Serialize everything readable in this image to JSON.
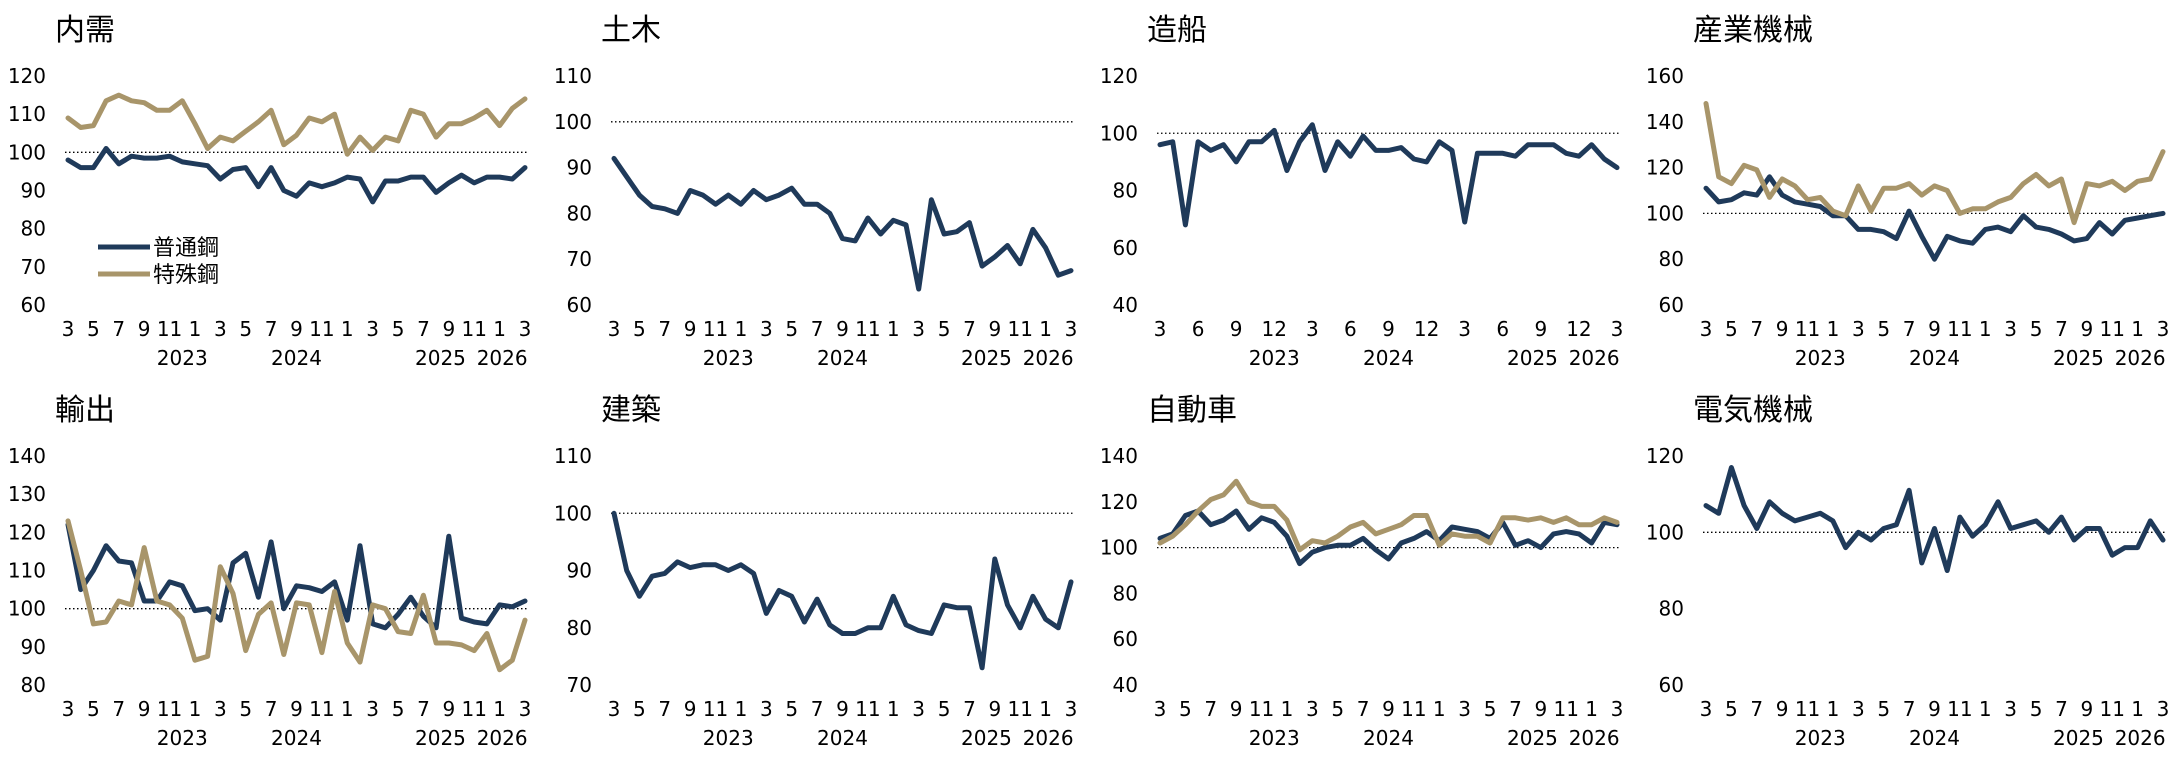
{
  "colors": {
    "series1": "#1f3a5a",
    "series2": "#a8956a",
    "reference_line": "#000000"
  },
  "chart_data": [
    {
      "type": "line",
      "title": "内需",
      "x_month_labels": [
        "3",
        "5",
        "7",
        "9",
        "11",
        "1",
        "3",
        "5",
        "7",
        "9",
        "11",
        "1",
        "3",
        "5",
        "7",
        "9",
        "11",
        "1",
        "3"
      ],
      "x_year_labels": [
        "2023",
        "2024",
        "2025",
        "2026"
      ],
      "ylim": [
        60,
        120
      ],
      "yticks": [
        60,
        70,
        80,
        90,
        100,
        110,
        120
      ],
      "reference_line": 100,
      "legend": {
        "position": "lower-left",
        "entries": [
          "普通鋼",
          "特殊鋼"
        ]
      },
      "series": [
        {
          "name": "普通鋼",
          "values": [
            98,
            96,
            96,
            101,
            97,
            99,
            98.5,
            98.5,
            99,
            97.5,
            97,
            96.5,
            93,
            95.5,
            96,
            91,
            96,
            90,
            88.5,
            92,
            91,
            92,
            93.5,
            93,
            87,
            92.5,
            92.5,
            93.5,
            93.5,
            89.5,
            92,
            94,
            92,
            93.5,
            93.5,
            93,
            96
          ]
        },
        {
          "name": "特殊鋼",
          "values": [
            109,
            106.5,
            107,
            113.5,
            115,
            113.5,
            113,
            111,
            111,
            113.5,
            107.5,
            101,
            104,
            103,
            105.5,
            108,
            111,
            102,
            104.5,
            109,
            108,
            110,
            99.5,
            104,
            100.5,
            104,
            103,
            111,
            110,
            104,
            107.5,
            107.5,
            109,
            111,
            107,
            111.5,
            114
          ]
        }
      ]
    },
    {
      "type": "line",
      "title": "土木",
      "x_month_labels": [
        "3",
        "5",
        "7",
        "9",
        "11",
        "1",
        "3",
        "5",
        "7",
        "9",
        "11",
        "1",
        "3",
        "5",
        "7",
        "9",
        "11",
        "1",
        "3"
      ],
      "x_year_labels": [
        "2023",
        "2024",
        "2025",
        "2026"
      ],
      "ylim": [
        60,
        110
      ],
      "yticks": [
        60,
        70,
        80,
        90,
        100,
        110
      ],
      "reference_line": 100,
      "series": [
        {
          "name": "",
          "values": [
            92,
            88,
            84,
            81.5,
            81,
            80,
            85,
            84,
            82,
            84,
            82,
            85,
            83,
            84,
            85.5,
            82,
            82,
            80,
            74.5,
            74,
            79,
            75.5,
            78.5,
            77.5,
            63.5,
            83,
            75.5,
            76,
            78,
            68.5,
            70.5,
            73,
            69,
            76.5,
            72.5,
            66.5,
            67.5
          ]
        }
      ]
    },
    {
      "type": "line",
      "title": "造船",
      "x_month_labels": [
        "3",
        "6",
        "9",
        "12",
        "3",
        "6",
        "9",
        "12",
        "3",
        "6",
        "9",
        "12",
        "3"
      ],
      "x_year_labels": [
        "2023",
        "2024",
        "2025",
        "2026"
      ],
      "ylim": [
        40,
        120
      ],
      "yticks": [
        40,
        60,
        80,
        100,
        120
      ],
      "reference_line": 100,
      "series": [
        {
          "name": "",
          "values": [
            96,
            97,
            68,
            97,
            94,
            96,
            90,
            97,
            97,
            101,
            87,
            97,
            103,
            87,
            97,
            92,
            99,
            94,
            94,
            95,
            91,
            90,
            97,
            94,
            69,
            93,
            93,
            93,
            92,
            96,
            96,
            96,
            93,
            92,
            96,
            91,
            88
          ]
        }
      ]
    },
    {
      "type": "line",
      "title": "産業機械",
      "x_month_labels": [
        "3",
        "5",
        "7",
        "9",
        "11",
        "1",
        "3",
        "5",
        "7",
        "9",
        "11",
        "1",
        "3",
        "5",
        "7",
        "9",
        "11",
        "1",
        "3"
      ],
      "x_year_labels": [
        "2023",
        "2024",
        "2025",
        "2026"
      ],
      "ylim": [
        60,
        160
      ],
      "yticks": [
        60,
        80,
        100,
        120,
        140,
        160
      ],
      "reference_line": 100,
      "series": [
        {
          "name": "普通鋼",
          "values": [
            111,
            105,
            106,
            109,
            108,
            116,
            108,
            105,
            104,
            103,
            99,
            99,
            93,
            93,
            92,
            89,
            101,
            90,
            80,
            90,
            88,
            87,
            93,
            94,
            92,
            99,
            94,
            93,
            91,
            88,
            89,
            96,
            91,
            97,
            98,
            99,
            100
          ]
        },
        {
          "name": "特殊鋼",
          "values": [
            148,
            116,
            113,
            121,
            119,
            107,
            115,
            112,
            106,
            107,
            101,
            99,
            112,
            101,
            111,
            111,
            113,
            108,
            112,
            110,
            100,
            102,
            102,
            105,
            107,
            113,
            117,
            112,
            115,
            96,
            113,
            112,
            114,
            110,
            114,
            115,
            127
          ]
        }
      ]
    },
    {
      "type": "line",
      "title": "輸出",
      "x_month_labels": [
        "3",
        "5",
        "7",
        "9",
        "11",
        "1",
        "3",
        "5",
        "7",
        "9",
        "11",
        "1",
        "3",
        "5",
        "7",
        "9",
        "11",
        "1",
        "3"
      ],
      "x_year_labels": [
        "2023",
        "2024",
        "2025",
        "2026"
      ],
      "ylim": [
        80,
        140
      ],
      "yticks": [
        80,
        90,
        100,
        110,
        120,
        130,
        140
      ],
      "reference_line": 100,
      "series": [
        {
          "name": "普通鋼",
          "values": [
            122,
            105,
            110,
            116.5,
            112.5,
            112,
            102,
            102,
            107,
            106,
            99.5,
            100,
            97,
            112,
            114.5,
            103,
            117.5,
            100,
            106,
            105.5,
            104.5,
            107,
            97,
            116.5,
            96,
            95,
            98.5,
            103,
            98,
            95,
            119,
            97.5,
            96.5,
            96,
            101,
            100.5,
            102
          ]
        },
        {
          "name": "特殊鋼",
          "values": [
            123,
            110,
            96,
            96.5,
            102,
            101,
            116,
            102,
            101,
            97.5,
            86.5,
            87.5,
            111,
            104,
            89,
            98.5,
            101.5,
            88,
            101.5,
            101,
            88.5,
            104.5,
            91,
            86,
            101,
            100,
            94,
            93.5,
            103.5,
            91,
            91,
            90.5,
            89,
            93.5,
            84,
            86.5,
            97
          ]
        }
      ]
    },
    {
      "type": "line",
      "title": "建築",
      "x_month_labels": [
        "3",
        "5",
        "7",
        "9",
        "11",
        "1",
        "3",
        "5",
        "7",
        "9",
        "11",
        "1",
        "3",
        "5",
        "7",
        "9",
        "11",
        "1",
        "3"
      ],
      "x_year_labels": [
        "2023",
        "2024",
        "2025",
        "2026"
      ],
      "ylim": [
        70,
        110
      ],
      "yticks": [
        70,
        80,
        90,
        100,
        110
      ],
      "reference_line": 100,
      "series": [
        {
          "name": "",
          "values": [
            100,
            90,
            85.5,
            89,
            89.5,
            91.5,
            90.5,
            91,
            91,
            90,
            91,
            89.5,
            82.5,
            86.5,
            85.5,
            81,
            85,
            80.5,
            79,
            79,
            80,
            80,
            85.5,
            80.5,
            79.5,
            79,
            84,
            83.5,
            83.5,
            73,
            92,
            84,
            80,
            85.5,
            81.5,
            80,
            88
          ]
        }
      ]
    },
    {
      "type": "line",
      "title": "自動車",
      "x_month_labels": [
        "3",
        "5",
        "7",
        "9",
        "11",
        "1",
        "3",
        "5",
        "7",
        "9",
        "11",
        "1",
        "3",
        "5",
        "7",
        "9",
        "11",
        "1",
        "3"
      ],
      "x_year_labels": [
        "2023",
        "2024",
        "2025",
        "2026"
      ],
      "ylim": [
        40,
        140
      ],
      "yticks": [
        40,
        60,
        80,
        100,
        120,
        140
      ],
      "reference_line": 100,
      "series": [
        {
          "name": "普通鋼",
          "values": [
            104,
            106,
            114,
            116,
            110,
            112,
            116,
            108,
            113,
            111,
            105,
            93,
            98,
            100,
            101,
            101,
            104,
            99,
            95,
            102,
            104,
            107,
            103,
            109,
            108,
            107,
            104,
            111,
            101,
            103,
            100,
            106,
            107,
            106,
            102,
            111,
            110
          ]
        },
        {
          "name": "特殊鋼",
          "values": [
            102,
            105,
            110,
            116,
            121,
            123,
            129,
            120,
            118,
            118,
            112,
            99,
            103,
            102,
            105,
            109,
            111,
            106,
            108,
            110,
            114,
            114,
            101,
            106,
            105,
            105,
            102,
            113,
            113,
            112,
            113,
            111,
            113,
            110,
            110,
            113,
            111
          ]
        }
      ]
    },
    {
      "type": "line",
      "title": "電気機械",
      "x_month_labels": [
        "3",
        "5",
        "7",
        "9",
        "11",
        "1",
        "3",
        "5",
        "7",
        "9",
        "11",
        "1",
        "3",
        "5",
        "7",
        "9",
        "11",
        "1",
        "3"
      ],
      "x_year_labels": [
        "2023",
        "2024",
        "2025",
        "2026"
      ],
      "ylim": [
        60,
        120
      ],
      "yticks": [
        60,
        80,
        100,
        120
      ],
      "reference_line": 100,
      "series": [
        {
          "name": "",
          "values": [
            107,
            105,
            117,
            107,
            101,
            108,
            105,
            103,
            104,
            105,
            103,
            96,
            100,
            98,
            101,
            102,
            111,
            92,
            101,
            90,
            104,
            99,
            102,
            108,
            101,
            102,
            103,
            100,
            104,
            98,
            101,
            101,
            94,
            96,
            96,
            103,
            98
          ]
        }
      ]
    }
  ]
}
